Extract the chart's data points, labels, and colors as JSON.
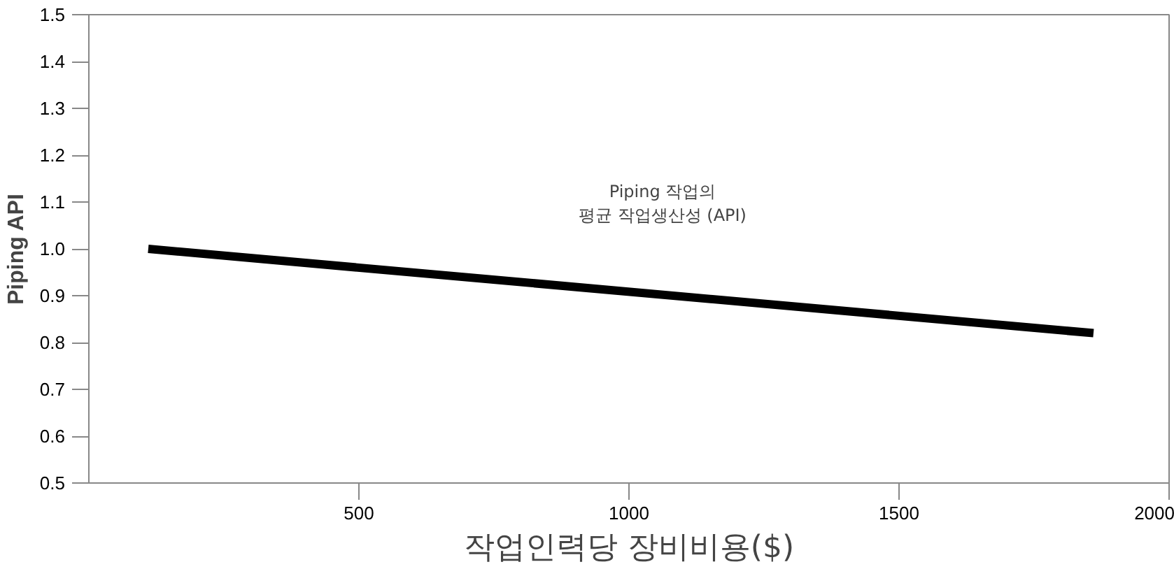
{
  "chart_data": {
    "type": "line",
    "xlabel": "작업인력당 장비비용($)",
    "ylabel": "Piping API",
    "x": [
      110,
      1860
    ],
    "series": [
      {
        "color": "#000000",
        "values": [
          1.0,
          0.82
        ]
      }
    ],
    "xlim": [
      0,
      2000
    ],
    "xticks": [
      500,
      1000,
      1500,
      2000
    ],
    "ylim": [
      0.5,
      1.5
    ],
    "yticks": [
      {
        "value": 0.5,
        "label": "0.5"
      },
      {
        "value": 0.6,
        "label": "0.6"
      },
      {
        "value": 0.7,
        "label": "0.7"
      },
      {
        "value": 0.8,
        "label": "0.8"
      },
      {
        "value": 0.9,
        "label": "0.9"
      },
      {
        "value": 1.0,
        "label": "1.0"
      },
      {
        "value": 1.1,
        "label": "1.1"
      },
      {
        "value": 1.2,
        "label": "1.2"
      },
      {
        "value": 1.3,
        "label": "1.3"
      },
      {
        "value": 1.4,
        "label": "1.4"
      },
      {
        "value": 1.5,
        "label": "1.5"
      }
    ],
    "annotations": [
      "Piping 작업의\n평균 작업생산성 (API)"
    ],
    "grid": false,
    "line_style": "solid",
    "marker": "none"
  }
}
